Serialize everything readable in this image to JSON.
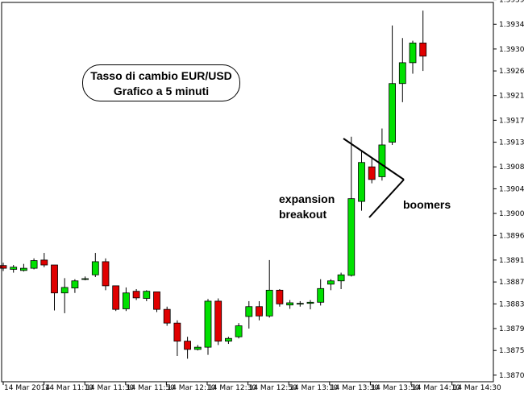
{
  "title_box": {
    "line1": "Tasso di cambio EUR/USD",
    "line2": "Grafico a 5 minuti"
  },
  "annotations": {
    "expansion_line1": "expansion",
    "expansion_line2": "breakout",
    "boomers": "boomers"
  },
  "colors": {
    "bull": "#00e000",
    "bear": "#e00000",
    "candle_outline": "#000000",
    "frame": "#000000"
  },
  "chart_data": {
    "type": "candlestick",
    "title": "Tasso di cambio EUR/USD",
    "subtitle": "Grafico a 5 minuti",
    "ylim": [
      1.38693,
      1.39385
    ],
    "y_ticks": [
      "1.39390",
      "1.39345",
      "1.39300",
      "1.39260",
      "1.39215",
      "1.39170",
      "1.39130",
      "1.39085",
      "1.39045",
      "1.39000",
      "1.38960",
      "1.38915",
      "1.38875",
      "1.38835",
      "1.38790",
      "1.38750",
      "1.38705"
    ],
    "x_ticks": [
      "14 Mar 2014",
      "14 Mar 11:10",
      "14 Mar 11:30",
      "14 Mar 11:50",
      "14 Mar 12:10",
      "14 Mar 12:30",
      "14 Mar 12:50",
      "14 Mar 13:10",
      "14 Mar 13:30",
      "14 Mar 13:50",
      "14 Mar 14:10",
      "14 Mar 14:30"
    ],
    "candles": [
      {
        "o": 1.38905,
        "h": 1.3891,
        "l": 1.38895,
        "c": 1.389
      },
      {
        "o": 1.38898,
        "h": 1.38906,
        "l": 1.38892,
        "c": 1.38902
      },
      {
        "o": 1.38896,
        "h": 1.38908,
        "l": 1.38894,
        "c": 1.389
      },
      {
        "o": 1.389,
        "h": 1.38918,
        "l": 1.38898,
        "c": 1.38914
      },
      {
        "o": 1.38915,
        "h": 1.38928,
        "l": 1.38902,
        "c": 1.38906
      },
      {
        "o": 1.38906,
        "h": 1.38906,
        "l": 1.38823,
        "c": 1.38855
      },
      {
        "o": 1.38855,
        "h": 1.38882,
        "l": 1.38818,
        "c": 1.38865
      },
      {
        "o": 1.38864,
        "h": 1.3888,
        "l": 1.38855,
        "c": 1.38877
      },
      {
        "o": 1.38881,
        "h": 1.38885,
        "l": 1.38878,
        "c": 1.38881
      },
      {
        "o": 1.38888,
        "h": 1.38928,
        "l": 1.38884,
        "c": 1.38912
      },
      {
        "o": 1.38912,
        "h": 1.38918,
        "l": 1.3886,
        "c": 1.38868
      },
      {
        "o": 1.38868,
        "h": 1.38868,
        "l": 1.38822,
        "c": 1.38825
      },
      {
        "o": 1.38826,
        "h": 1.38865,
        "l": 1.38822,
        "c": 1.38855
      },
      {
        "o": 1.38858,
        "h": 1.38862,
        "l": 1.38842,
        "c": 1.38846
      },
      {
        "o": 1.38845,
        "h": 1.3886,
        "l": 1.3884,
        "c": 1.38858
      },
      {
        "o": 1.38857,
        "h": 1.38857,
        "l": 1.3882,
        "c": 1.38825
      },
      {
        "o": 1.38825,
        "h": 1.3883,
        "l": 1.38795,
        "c": 1.388
      },
      {
        "o": 1.388,
        "h": 1.38805,
        "l": 1.3874,
        "c": 1.38767
      },
      {
        "o": 1.38767,
        "h": 1.38775,
        "l": 1.38735,
        "c": 1.38752
      },
      {
        "o": 1.38752,
        "h": 1.3876,
        "l": 1.3875,
        "c": 1.38756
      },
      {
        "o": 1.38756,
        "h": 1.38844,
        "l": 1.38742,
        "c": 1.3884
      },
      {
        "o": 1.3884,
        "h": 1.38845,
        "l": 1.3876,
        "c": 1.38767
      },
      {
        "o": 1.38767,
        "h": 1.38775,
        "l": 1.38762,
        "c": 1.38772
      },
      {
        "o": 1.38775,
        "h": 1.388,
        "l": 1.38772,
        "c": 1.38795
      },
      {
        "o": 1.38812,
        "h": 1.3884,
        "l": 1.3879,
        "c": 1.3883
      },
      {
        "o": 1.3883,
        "h": 1.3884,
        "l": 1.38805,
        "c": 1.38813
      },
      {
        "o": 1.38813,
        "h": 1.38915,
        "l": 1.3881,
        "c": 1.3886
      },
      {
        "o": 1.3886,
        "h": 1.38862,
        "l": 1.3883,
        "c": 1.38835
      },
      {
        "o": 1.38833,
        "h": 1.38842,
        "l": 1.38826,
        "c": 1.38837
      },
      {
        "o": 1.38835,
        "h": 1.3884,
        "l": 1.3883,
        "c": 1.38836
      },
      {
        "o": 1.38836,
        "h": 1.38842,
        "l": 1.38825,
        "c": 1.38838
      },
      {
        "o": 1.38838,
        "h": 1.3888,
        "l": 1.38832,
        "c": 1.38863
      },
      {
        "o": 1.38871,
        "h": 1.3888,
        "l": 1.3886,
        "c": 1.38877
      },
      {
        "o": 1.38877,
        "h": 1.38892,
        "l": 1.38862,
        "c": 1.38888
      },
      {
        "o": 1.38887,
        "h": 1.3914,
        "l": 1.38885,
        "c": 1.39027
      },
      {
        "o": 1.39022,
        "h": 1.39115,
        "l": 1.39005,
        "c": 1.39093
      },
      {
        "o": 1.39085,
        "h": 1.391,
        "l": 1.39055,
        "c": 1.39062
      },
      {
        "o": 1.39067,
        "h": 1.39155,
        "l": 1.3906,
        "c": 1.39125
      },
      {
        "o": 1.3913,
        "h": 1.39343,
        "l": 1.39125,
        "c": 1.39237
      },
      {
        "o": 1.39237,
        "h": 1.3932,
        "l": 1.39203,
        "c": 1.39275
      },
      {
        "o": 1.39275,
        "h": 1.39315,
        "l": 1.39255,
        "c": 1.39311
      },
      {
        "o": 1.39311,
        "h": 1.3937,
        "l": 1.3926,
        "c": 1.39287
      }
    ]
  }
}
